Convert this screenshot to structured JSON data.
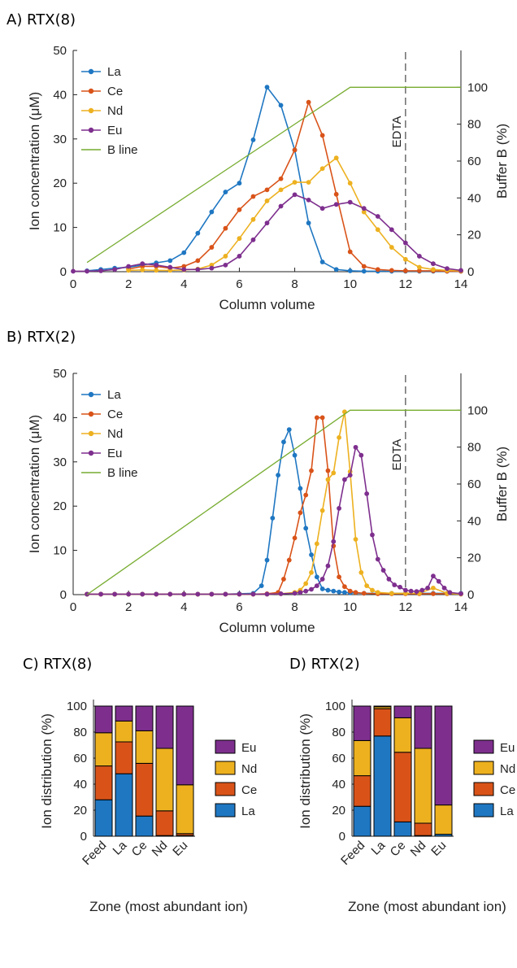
{
  "colors": {
    "La": "#1f77c2",
    "Ce": "#d95319",
    "Nd": "#edb120",
    "Eu": "#7e2f8e",
    "B line": "#77ac30"
  },
  "chart_data": [
    {
      "panel_label": "A) RTX(8)",
      "type": "line",
      "xlabel": "Column volume",
      "ylabel": "Ion concentration (μM)",
      "y2label": "Buffer B (%)",
      "xlim": [
        0,
        14
      ],
      "ylim": [
        0,
        50
      ],
      "y2lim": [
        0,
        120
      ],
      "xticks": [
        0,
        2,
        4,
        6,
        8,
        10,
        12,
        14
      ],
      "yticks": [
        0,
        10,
        20,
        30,
        40,
        50
      ],
      "y2ticks": [
        0,
        20,
        40,
        60,
        80,
        100
      ],
      "annotation": {
        "text": "EDTA",
        "x": 12
      },
      "legend_position": "top-left",
      "series": [
        {
          "name": "La",
          "x": [
            0.5,
            1,
            1.5,
            2,
            2.5,
            3,
            3.5,
            4,
            4.5,
            5,
            5.5,
            6,
            6.5,
            7,
            7.5,
            8,
            8.5,
            9,
            9.5,
            10,
            10.5,
            11,
            11.5,
            12,
            12.5,
            13,
            13.5,
            14
          ],
          "y": [
            0.2,
            0.5,
            0.8,
            1.0,
            1.5,
            2.0,
            2.5,
            4.3,
            8.7,
            13.5,
            18.0,
            20.0,
            29.8,
            41.7,
            37.6,
            27.5,
            11.0,
            2.2,
            0.5,
            0.2,
            0.1,
            0.1,
            0.1,
            0.1,
            0.1,
            0.1,
            0.1,
            0.1
          ]
        },
        {
          "name": "Ce",
          "x": [
            2,
            2.5,
            3,
            3.5,
            4,
            4.5,
            5,
            5.5,
            6,
            6.5,
            7,
            7.5,
            8,
            8.5,
            9,
            9.5,
            10,
            10.5,
            11,
            11.5,
            12,
            12.5,
            13,
            13.5,
            14
          ],
          "y": [
            0.6,
            1.2,
            1.2,
            0.8,
            1.2,
            2.5,
            5.5,
            9.8,
            14.0,
            17.0,
            18.5,
            21.0,
            27.5,
            38.3,
            30.8,
            17.5,
            4.5,
            1.2,
            0.5,
            0.3,
            0.2,
            0.2,
            0.2,
            0.1,
            0.1
          ]
        },
        {
          "name": "Nd",
          "x": [
            2,
            2.5,
            3,
            3.5,
            4,
            4.5,
            5,
            5.5,
            6,
            6.5,
            7,
            7.5,
            8,
            8.5,
            9,
            9.5,
            10,
            10.5,
            11,
            11.5,
            12,
            12.5,
            13,
            13.5,
            14
          ],
          "y": [
            0.3,
            0.4,
            0.3,
            0.3,
            0.4,
            0.6,
            1.5,
            3.5,
            7.5,
            11.8,
            16.0,
            18.5,
            20.2,
            20.2,
            23.3,
            25.7,
            20.0,
            13.5,
            9.5,
            5.5,
            2.8,
            1.0,
            0.5,
            0.3,
            0.2
          ]
        },
        {
          "name": "Eu",
          "x": [
            0,
            0.5,
            1,
            1.5,
            2,
            2.5,
            3,
            3.5,
            4,
            4.5,
            5,
            5.5,
            6,
            6.5,
            7,
            7.5,
            8,
            8.5,
            9,
            9.5,
            10,
            10.5,
            11,
            11.5,
            12,
            12.5,
            13,
            13.5,
            14
          ],
          "y": [
            0.1,
            0.1,
            0.2,
            0.5,
            1.2,
            1.8,
            1.5,
            1.0,
            0.5,
            0.5,
            0.8,
            1.5,
            3.5,
            7.2,
            11.0,
            14.8,
            17.4,
            16.2,
            14.3,
            15.2,
            15.7,
            14.3,
            12.5,
            9.5,
            6.5,
            3.5,
            1.8,
            0.7,
            0.3
          ]
        },
        {
          "name": "B line",
          "axis": "right",
          "x": [
            0.5,
            10,
            14
          ],
          "y": [
            5,
            100,
            100
          ]
        }
      ]
    },
    {
      "panel_label": "B) RTX(2)",
      "type": "line",
      "xlabel": "Column volume",
      "ylabel": "Ion concentration (μM)",
      "y2label": "Buffer B (%)",
      "xlim": [
        0,
        14
      ],
      "ylim": [
        0,
        50
      ],
      "y2lim": [
        0,
        120
      ],
      "xticks": [
        0,
        2,
        4,
        6,
        8,
        10,
        12,
        14
      ],
      "yticks": [
        0,
        10,
        20,
        30,
        40,
        50
      ],
      "y2ticks": [
        0,
        20,
        40,
        60,
        80,
        100
      ],
      "annotation": {
        "text": "EDTA",
        "x": 12
      },
      "legend_position": "top-left",
      "series": [
        {
          "name": "La",
          "x": [
            0.5,
            1,
            1.5,
            2,
            2.5,
            3,
            3.5,
            4,
            4.5,
            5,
            5.5,
            6,
            6.5,
            6.8,
            7,
            7.2,
            7.4,
            7.6,
            7.8,
            8,
            8.2,
            8.4,
            8.6,
            8.8,
            9,
            9.2,
            9.4,
            9.6,
            9.8,
            10,
            10.5,
            11,
            11.5,
            12,
            12.5,
            13,
            13.5,
            14
          ],
          "y": [
            0.1,
            0.1,
            0.1,
            0.1,
            0.1,
            0.1,
            0.1,
            0.1,
            0.1,
            0.1,
            0.1,
            0.2,
            0.3,
            2.0,
            7.8,
            17.3,
            27.0,
            34.5,
            37.3,
            31.5,
            24.0,
            15.0,
            9.0,
            4.0,
            1.3,
            1.0,
            0.8,
            0.6,
            0.5,
            0.4,
            0.3,
            0.3,
            0.3,
            0.3,
            0.3,
            0.3,
            0.3,
            0.3
          ]
        },
        {
          "name": "Ce",
          "x": [
            0.5,
            1,
            1.5,
            2,
            2.5,
            3,
            3.5,
            4,
            4.5,
            5,
            5.5,
            6,
            6.5,
            7,
            7.4,
            7.6,
            7.8,
            8,
            8.2,
            8.4,
            8.6,
            8.8,
            9,
            9.2,
            9.4,
            9.6,
            9.8,
            10,
            10.2,
            10.5,
            11,
            11.5,
            12,
            12.5,
            13,
            13.5,
            14
          ],
          "y": [
            0.1,
            0.1,
            0.1,
            0.1,
            0.1,
            0.1,
            0.1,
            0.1,
            0.1,
            0.1,
            0.1,
            0.1,
            0.1,
            0.2,
            0.5,
            3.5,
            7.8,
            12.8,
            18.5,
            22.5,
            28.0,
            40.0,
            40.0,
            28.0,
            11.0,
            4.0,
            1.8,
            0.8,
            0.5,
            0.3,
            0.2,
            0.2,
            0.2,
            0.2,
            0.2,
            0.2,
            0.2
          ]
        },
        {
          "name": "Nd",
          "x": [
            0.5,
            1,
            1.5,
            2,
            2.5,
            3,
            3.5,
            4,
            4.5,
            5,
            5.5,
            6,
            6.5,
            7,
            7.5,
            8,
            8.2,
            8.4,
            8.6,
            8.8,
            9,
            9.2,
            9.4,
            9.6,
            9.8,
            10,
            10.2,
            10.4,
            10.6,
            10.8,
            11,
            11.5,
            12,
            12.5,
            13,
            13.5,
            14
          ],
          "y": [
            0.1,
            0.1,
            0.1,
            0.1,
            0.1,
            0.1,
            0.1,
            0.1,
            0.1,
            0.1,
            0.1,
            0.1,
            0.1,
            0.1,
            0.2,
            0.5,
            1.0,
            2.5,
            5.0,
            11.5,
            19.0,
            26.0,
            27.5,
            35.5,
            41.3,
            27.8,
            12.5,
            5.0,
            2.0,
            1.0,
            0.5,
            0.3,
            0.3,
            0.3,
            1.5,
            0.3,
            0.1
          ]
        },
        {
          "name": "Eu",
          "x": [
            0.5,
            1,
            1.5,
            2,
            2.5,
            3,
            3.5,
            4,
            4.5,
            5,
            5.5,
            6,
            6.5,
            7,
            7.5,
            8,
            8.2,
            8.4,
            8.6,
            8.8,
            9,
            9.2,
            9.4,
            9.6,
            9.8,
            10,
            10.2,
            10.4,
            10.6,
            10.8,
            11,
            11.2,
            11.4,
            11.6,
            11.8,
            12,
            12.2,
            12.4,
            12.6,
            12.8,
            13,
            13.2,
            13.4,
            13.6,
            14
          ],
          "y": [
            0.1,
            0.1,
            0.1,
            0.1,
            0.1,
            0.1,
            0.1,
            0.1,
            0.1,
            0.1,
            0.1,
            0.1,
            0.1,
            0.1,
            0.2,
            0.3,
            0.5,
            0.8,
            1.2,
            2.0,
            3.5,
            6.5,
            12.0,
            19.5,
            26.0,
            27.0,
            33.3,
            31.5,
            22.8,
            13.5,
            8.0,
            5.5,
            3.5,
            2.2,
            1.7,
            1.0,
            0.8,
            0.7,
            1.0,
            1.5,
            4.2,
            3.0,
            1.5,
            0.5,
            0.2
          ]
        },
        {
          "name": "B line",
          "axis": "right",
          "x": [
            0.5,
            10,
            14
          ],
          "y": [
            0,
            100,
            100
          ]
        }
      ]
    },
    {
      "panel_label": "C) RTX(8)",
      "type": "bar",
      "stacked": true,
      "xlabel": "Zone (most abundant ion)",
      "ylabel": "Ion distribution (%)",
      "ylim": [
        0,
        100
      ],
      "yticks": [
        0,
        20,
        40,
        60,
        80,
        100
      ],
      "categories": [
        "Feed",
        "La",
        "Ce",
        "Nd",
        "Eu"
      ],
      "legend_position": "right",
      "series": [
        {
          "name": "La",
          "values": [
            28,
            48,
            15.5,
            0.5,
            0.5
          ]
        },
        {
          "name": "Ce",
          "values": [
            26,
            24.5,
            40.5,
            19,
            1.5
          ]
        },
        {
          "name": "Nd",
          "values": [
            25.5,
            16,
            25,
            48,
            37.5
          ]
        },
        {
          "name": "Eu",
          "values": [
            20.5,
            11.5,
            19,
            32.5,
            60.5
          ]
        }
      ]
    },
    {
      "panel_label": "D) RTX(2)",
      "type": "bar",
      "stacked": true,
      "xlabel": "Zone (most abundant ion)",
      "ylabel": "Ion distribution (%)",
      "ylim": [
        0,
        100
      ],
      "yticks": [
        0,
        20,
        40,
        60,
        80,
        100
      ],
      "categories": [
        "Feed",
        "La",
        "Ce",
        "Nd",
        "Eu"
      ],
      "legend_position": "right",
      "series": [
        {
          "name": "La",
          "values": [
            23,
            77,
            11,
            0.5,
            1.5
          ]
        },
        {
          "name": "Ce",
          "values": [
            23.5,
            21,
            53.5,
            9.5,
            0
          ]
        },
        {
          "name": "Nd",
          "values": [
            27,
            1.5,
            26.5,
            57.5,
            22.5
          ]
        },
        {
          "name": "Eu",
          "values": [
            26.5,
            0.5,
            9,
            32.5,
            76
          ]
        }
      ]
    }
  ]
}
